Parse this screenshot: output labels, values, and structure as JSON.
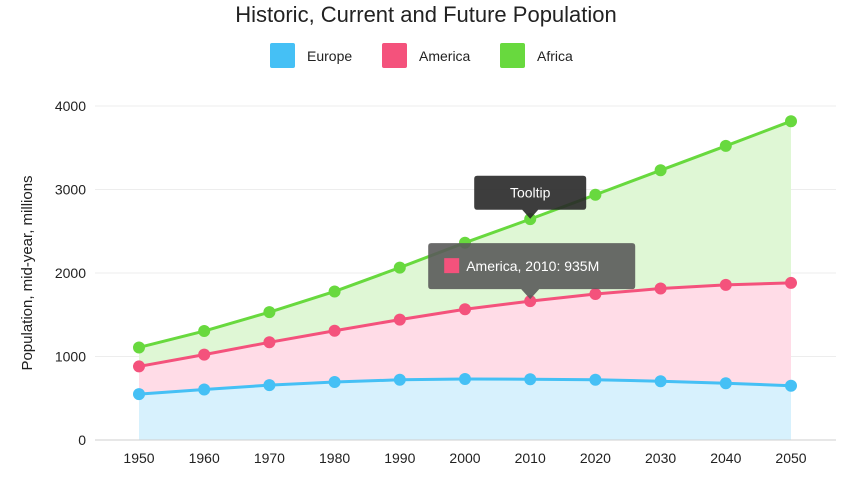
{
  "chart_data": {
    "type": "area",
    "stacked": true,
    "title": "Historic, Current and Future Population",
    "xlabel": "",
    "ylabel": "Population, mid-year, millions",
    "x": [
      1950,
      1960,
      1970,
      1980,
      1990,
      2000,
      2010,
      2020,
      2030,
      2040,
      2050
    ],
    "ylim": [
      0,
      4000
    ],
    "yticks": [
      0,
      1000,
      2000,
      3000,
      4000
    ],
    "grid": true,
    "legend_position": "top-center",
    "series": [
      {
        "name": "Europe",
        "color": "#45c0f5",
        "fill": "#d7f1fd",
        "values": [
          549,
          605,
          657,
          694,
          721,
          730,
          728,
          721,
          704,
          680,
          650
        ]
      },
      {
        "name": "America",
        "color": "#f4527c",
        "fill": "#ffdce7",
        "values": [
          332,
          417,
          513,
          614,
          721,
          836,
          935,
          1027,
          1110,
          1178,
          1231
        ]
      },
      {
        "name": "Africa",
        "color": "#68d93e",
        "fill": "#dff7d5",
        "values": [
          227,
          283,
          361,
          471,
          623,
          797,
          982,
          1189,
          1416,
          1664,
          1937
        ]
      }
    ],
    "annotations": [
      {
        "kind": "tooltip-label",
        "text": "Tooltip",
        "x": 2010,
        "y": 2650
      },
      {
        "kind": "tooltip-data",
        "text": "America, 2010: 935M",
        "series": "America",
        "x": 2010,
        "y": 1663
      }
    ]
  }
}
